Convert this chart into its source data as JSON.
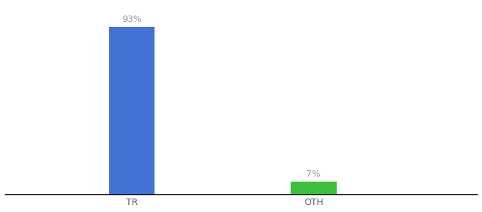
{
  "categories": [
    "TR",
    "OTH"
  ],
  "values": [
    93,
    7
  ],
  "bar_colors": [
    "#4472D4",
    "#3DBF3D"
  ],
  "label_texts": [
    "93%",
    "7%"
  ],
  "background_color": "#ffffff",
  "ylim": [
    0,
    105
  ],
  "bar_width": 0.25,
  "x_positions": [
    1,
    2
  ],
  "xlim": [
    0.3,
    2.9
  ],
  "figsize": [
    6.8,
    3.0
  ],
  "dpi": 100,
  "tick_fontsize": 9,
  "label_fontsize": 9,
  "xlabel_color": "#555555",
  "label_color": "#999999"
}
